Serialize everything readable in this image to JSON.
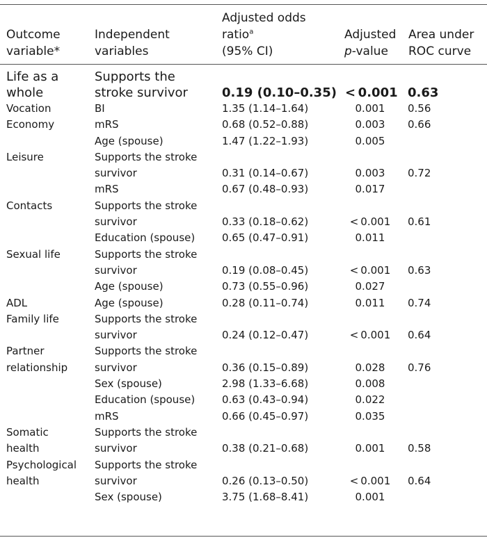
{
  "headers": {
    "outcome_line1": "Outcome",
    "outcome_line2": "variable*",
    "indep_line1": "Independent",
    "indep_line2": "variables",
    "odds_line1": "Adjusted odds",
    "odds_line2": "ratio",
    "odds_sup": "a",
    "odds_line3": "(95% CI)",
    "pval_line1": "Adjusted",
    "pval_italic": "p",
    "pval_rest": "-value",
    "auc_line1": "Area under",
    "auc_line2": "ROC curve"
  },
  "rows": [
    {
      "outcome": [
        "Life as a",
        "whole"
      ],
      "indep": [
        "Supports the",
        "stroke survivor"
      ],
      "or": "0.19 (0.10–0.35)",
      "p": "< 0.001",
      "auc": "0.63"
    },
    {
      "outcome": [
        "Vocation"
      ],
      "indep": [
        "BI"
      ],
      "or": "1.35 (1.14–1.64)",
      "p": "0.001",
      "auc": "0.56"
    },
    {
      "outcome": [
        "Economy"
      ],
      "indep": [
        "mRS"
      ],
      "or": "0.68 (0.52–0.88)",
      "p": "0.003",
      "auc": "0.66"
    },
    {
      "outcome": [
        ""
      ],
      "indep": [
        "Age (spouse)"
      ],
      "or": "1.47 (1.22–1.93)",
      "p": "0.005",
      "auc": ""
    },
    {
      "outcome": [
        "Leisure"
      ],
      "indep": [
        "Supports the stroke",
        "survivor"
      ],
      "or": "0.31 (0.14–0.67)",
      "p": "0.003",
      "auc": "0.72"
    },
    {
      "outcome": [
        ""
      ],
      "indep": [
        "mRS"
      ],
      "or": "0.67 (0.48–0.93)",
      "p": "0.017",
      "auc": ""
    },
    {
      "outcome": [
        "Contacts"
      ],
      "indep": [
        "Supports the stroke",
        "survivor"
      ],
      "or": "0.33 (0.18–0.62)",
      "p": "< 0.001",
      "auc": "0.61"
    },
    {
      "outcome": [
        ""
      ],
      "indep": [
        "Education (spouse)"
      ],
      "or": "0.65 (0.47–0.91)",
      "p": "0.011",
      "auc": ""
    },
    {
      "outcome": [
        "Sexual life"
      ],
      "indep": [
        "Supports the stroke",
        "survivor"
      ],
      "or": "0.19 (0.08–0.45)",
      "p": "< 0.001",
      "auc": "0.63"
    },
    {
      "outcome": [
        ""
      ],
      "indep": [
        "Age (spouse)"
      ],
      "or": "0.73 (0.55–0.96)",
      "p": "0.027",
      "auc": ""
    },
    {
      "outcome": [
        "ADL"
      ],
      "indep": [
        "Age (spouse)"
      ],
      "or": "0.28 (0.11–0.74)",
      "p": "0.011",
      "auc": "0.74"
    },
    {
      "outcome": [
        "Family life"
      ],
      "indep": [
        "Supports the stroke",
        "survivor"
      ],
      "or": "0.24 (0.12–0.47)",
      "p": "< 0.001",
      "auc": "0.64"
    },
    {
      "outcome": [
        "Partner",
        "relationship"
      ],
      "indep": [
        "Supports the stroke",
        "survivor"
      ],
      "or": "0.36 (0.15–0.89)",
      "p": "0.028",
      "auc": "0.76"
    },
    {
      "outcome": [
        ""
      ],
      "indep": [
        "Sex (spouse)"
      ],
      "or": "2.98 (1.33–6.68)",
      "p": "0.008",
      "auc": ""
    },
    {
      "outcome": [
        ""
      ],
      "indep": [
        "Education (spouse)"
      ],
      "or": "0.63 (0.43–0.94)",
      "p": "0.022",
      "auc": ""
    },
    {
      "outcome": [
        ""
      ],
      "indep": [
        "mRS"
      ],
      "or": "0.66 (0.45–0.97)",
      "p": "0.035",
      "auc": ""
    },
    {
      "outcome": [
        "Somatic",
        "health"
      ],
      "indep": [
        "Supports the stroke",
        "survivor"
      ],
      "or": "0.38 (0.21–0.68)",
      "p": "0.001",
      "auc": "0.58"
    },
    {
      "outcome": [
        "Psychological",
        "health"
      ],
      "indep": [
        "Supports the stroke",
        "survivor"
      ],
      "or": "0.26 (0.13–0.50)",
      "p": "< 0.001",
      "auc": "0.64"
    },
    {
      "outcome": [
        ""
      ],
      "indep": [
        "Sex (spouse)"
      ],
      "or": "3.75 (1.68–8.41)",
      "p": "0.001",
      "auc": ""
    }
  ]
}
